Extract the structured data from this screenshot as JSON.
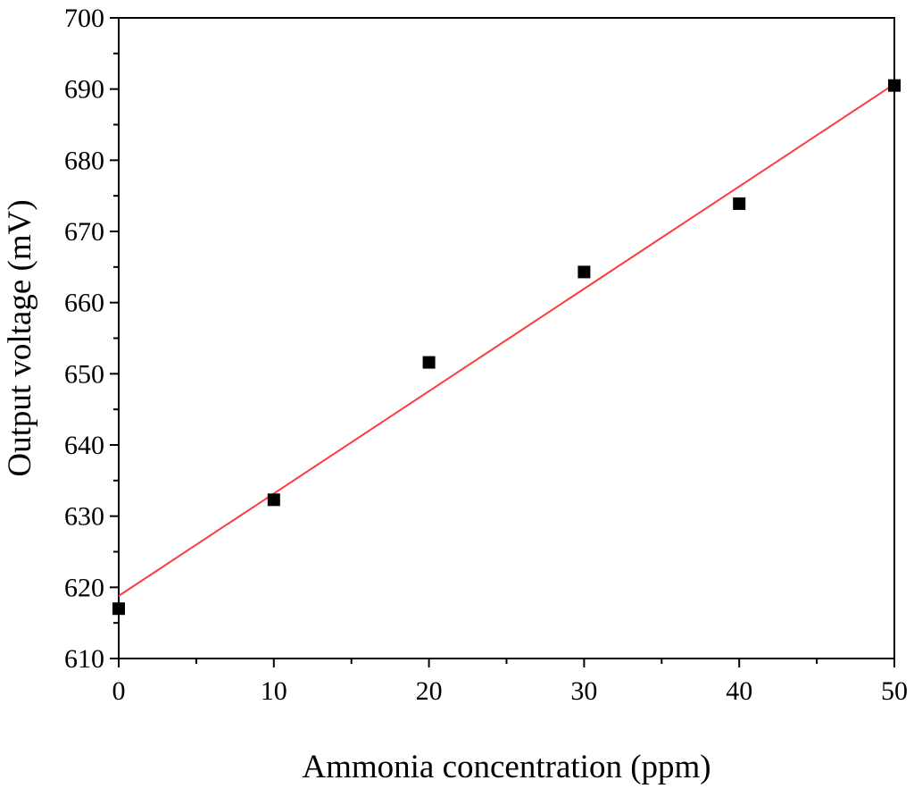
{
  "chart_data": {
    "type": "scatter",
    "title": "",
    "xlabel": "Ammonia concentration (ppm)",
    "ylabel": "Output voltage (mV)",
    "xlim": [
      0,
      50
    ],
    "ylim": [
      610,
      700
    ],
    "x_ticks": [
      0,
      10,
      20,
      30,
      40,
      50
    ],
    "x_tick_labels": [
      "0",
      "10",
      "20",
      "30",
      "40",
      "50"
    ],
    "y_ticks": [
      610,
      620,
      630,
      640,
      650,
      660,
      670,
      680,
      690,
      700
    ],
    "y_tick_labels": [
      "610",
      "620",
      "630",
      "640",
      "650",
      "660",
      "670",
      "680",
      "690",
      "700"
    ],
    "grid": false,
    "legend": "none",
    "series": [
      {
        "x": [
          0,
          10,
          20,
          30,
          40,
          50
        ],
        "y": [
          617.0,
          632.3,
          651.6,
          664.3,
          673.9,
          690.5
        ],
        "marker": "square",
        "color": "#000000"
      }
    ],
    "fit_line": {
      "color": "#ff3b3b",
      "x": [
        0,
        50
      ],
      "y": [
        618.8,
        690.7
      ]
    }
  }
}
